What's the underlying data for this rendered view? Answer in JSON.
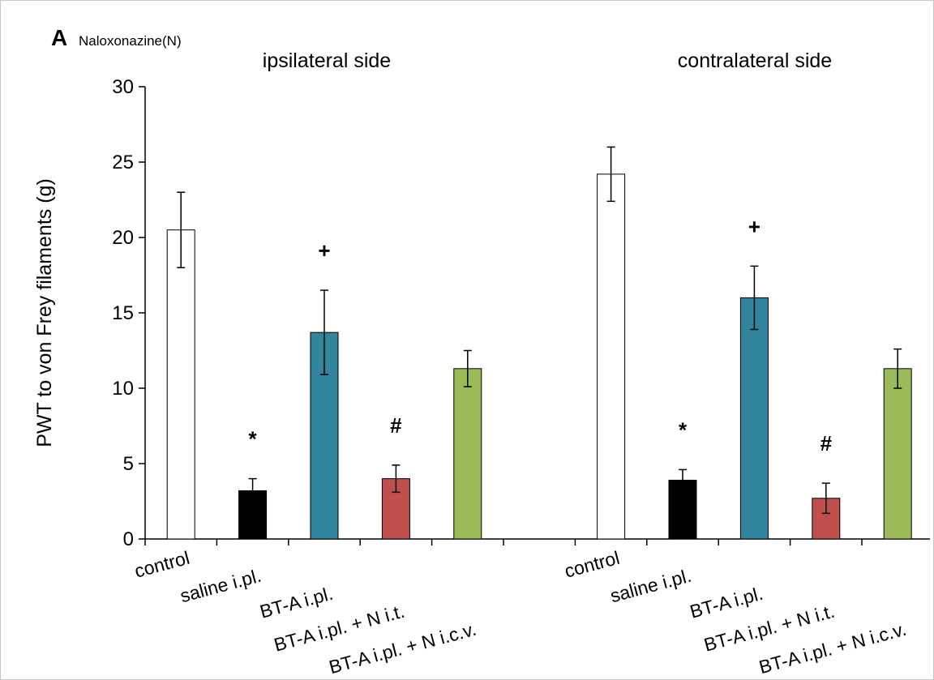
{
  "panel": {
    "letter": "A",
    "subtitle": "Naloxonazine(N)"
  },
  "chart_data": {
    "type": "bar",
    "ylabel": "PWT to von Frey filaments (g)",
    "ylim": [
      0,
      30
    ],
    "yticks": [
      0,
      5,
      10,
      15,
      20,
      25,
      30
    ],
    "groups": [
      {
        "title": "ipsilateral side",
        "categories": [
          "control",
          "saline i.pl.",
          "BT-A i.pl.",
          "BT-A i.pl. + N i.t.",
          "BT-A i.pl. + N i.c.v."
        ],
        "values": [
          20.5,
          3.2,
          13.7,
          4.0,
          11.3
        ],
        "errors": [
          2.5,
          0.8,
          2.8,
          0.9,
          1.2
        ],
        "annotations": [
          "",
          "*",
          "+",
          "#",
          ""
        ]
      },
      {
        "title": "contralateral side",
        "categories": [
          "control",
          "saline i.pl.",
          "BT-A i.pl.",
          "BT-A i.pl. + N i.t.",
          "BT-A i.pl. + N i.c.v."
        ],
        "values": [
          24.2,
          3.9,
          16.0,
          2.7,
          11.3
        ],
        "errors": [
          1.8,
          0.7,
          2.1,
          1.0,
          1.3
        ],
        "annotations": [
          "",
          "*",
          "+",
          "#",
          ""
        ]
      }
    ],
    "colors": [
      "#ffffff",
      "#000000",
      "#31859c",
      "#c0504d",
      "#9bbb59"
    ],
    "grid": false,
    "legend": "none"
  }
}
